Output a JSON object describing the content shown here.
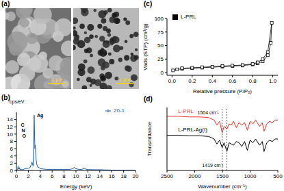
{
  "panel_a": {
    "label": "(a)",
    "images": [
      {
        "scale_bar": "1 μm"
      },
      {
        "scale_bar": "1 μm"
      }
    ]
  },
  "chart_data": [
    {
      "type": "line",
      "title": "(b)",
      "x_label": "Energy (keV)",
      "y_label": "cps/eV",
      "x": [
        0,
        0.2,
        0.28,
        0.35,
        0.39,
        0.45,
        0.52,
        0.6,
        1.0,
        1.5,
        2.0,
        2.3,
        2.62,
        2.8,
        2.98,
        3.1,
        3.15,
        3.3,
        3.45,
        3.6,
        3.8,
        4.0,
        5,
        6,
        7,
        8,
        9,
        9.5,
        9.7,
        9.9,
        10.5,
        11,
        11.4,
        11.6,
        12,
        13,
        14,
        16,
        18,
        20
      ],
      "series": [
        {
          "name": "20-1",
          "color": "#1f5fa8",
          "values": [
            0,
            0.3,
            1.2,
            0.4,
            0.6,
            0.3,
            0.8,
            0.3,
            0.2,
            0.5,
            0.6,
            0.8,
            2.3,
            1.2,
            15.2,
            6,
            7,
            3,
            1.5,
            0.9,
            0.8,
            0.5,
            0.3,
            0.3,
            0.3,
            0.3,
            0.3,
            0.5,
            0.9,
            0.5,
            0.3,
            0.3,
            0.6,
            0.4,
            0.25,
            0.2,
            0.2,
            0.1,
            0.1,
            0.1
          ]
        }
      ],
      "xlim": [
        0,
        20
      ],
      "xticks": [
        0,
        2,
        4,
        6,
        8,
        10,
        12,
        14,
        16,
        18,
        20
      ],
      "ylim": [
        0,
        16
      ],
      "yticks": [
        0,
        2,
        4,
        6,
        8,
        10,
        12,
        14
      ],
      "legend": "upper right",
      "annotations": [
        {
          "x": 2.98,
          "y": 15.2,
          "text": "Ag"
        },
        {
          "x": 0.28,
          "y": 12.5,
          "text": "C"
        },
        {
          "x": 0.39,
          "y": 11,
          "text": "N"
        },
        {
          "x": 0.52,
          "y": 9.5,
          "text": "O"
        }
      ]
    },
    {
      "type": "line",
      "title": "(c)",
      "x_label": "Relative pressure (P/P₀)",
      "y_label": "Vads (STP) (cm³/g)",
      "x": [
        0.01,
        0.05,
        0.1,
        0.2,
        0.3,
        0.4,
        0.5,
        0.6,
        0.7,
        0.8,
        0.85,
        0.9,
        0.95,
        0.98,
        0.99,
        0.95,
        0.9,
        0.85,
        0.8,
        0.7,
        0.6,
        0.5,
        0.4,
        0.3,
        0.2,
        0.1
      ],
      "series": [
        {
          "name": "L-PRL",
          "color": "#000000",
          "marker": "square",
          "line_style": "solid",
          "values": [
            4,
            6,
            7,
            8,
            9,
            10,
            11,
            12,
            13,
            15,
            17,
            21,
            32,
            55,
            92,
            38,
            25,
            19,
            16,
            14,
            13,
            12,
            11,
            10,
            9,
            8
          ]
        }
      ],
      "xlim": [
        -0.05,
        1.05
      ],
      "xticks": [
        {
          "value": 0,
          "label": "0.0"
        },
        0.2,
        0.4,
        0.6,
        0.8,
        {
          "value": 1,
          "label": "1.0"
        }
      ],
      "ylim": [
        -5,
        100
      ],
      "yticks": [
        0,
        25,
        50,
        75,
        100
      ],
      "legend": "upper left"
    },
    {
      "type": "line",
      "title": "(d)",
      "x_label": "Wavenumber (cm⁻¹)",
      "y_label": "Transmittance",
      "x": [
        2500,
        2300,
        2100,
        1900,
        1750,
        1650,
        1600,
        1550,
        1504,
        1470,
        1419,
        1380,
        1340,
        1300,
        1250,
        1200,
        1150,
        1100,
        1050,
        1000,
        950,
        900,
        830,
        780,
        750,
        700,
        650,
        600,
        550,
        500
      ],
      "series": [
        {
          "name": "L-PRL",
          "color": "#e8312a",
          "values": [
            86,
            86,
            85,
            85,
            84,
            80,
            72,
            78,
            60,
            70,
            66,
            74,
            72,
            78,
            68,
            76,
            72,
            76,
            64,
            78,
            74,
            80,
            70,
            76,
            62,
            74,
            78,
            76,
            80,
            80
          ]
        },
        {
          "name": "L-PRL-Ag(I)",
          "color": "#000000",
          "values": [
            56,
            56,
            55,
            55,
            54,
            50,
            42,
            48,
            36,
            44,
            30,
            44,
            42,
            40,
            46,
            44,
            38,
            46,
            32,
            48,
            44,
            50,
            40,
            46,
            30,
            44,
            48,
            46,
            50,
            50
          ]
        }
      ],
      "xlim": [
        2500,
        500
      ],
      "xticks": [
        2500,
        2000,
        1500,
        1000,
        500
      ],
      "ylim": [
        0,
        100
      ],
      "tick_labels": "x",
      "annotations": [
        {
          "x": 1504,
          "text": "1504 cm⁻¹"
        },
        {
          "x": 1419,
          "text": "1419 cm⁻¹"
        }
      ]
    }
  ]
}
